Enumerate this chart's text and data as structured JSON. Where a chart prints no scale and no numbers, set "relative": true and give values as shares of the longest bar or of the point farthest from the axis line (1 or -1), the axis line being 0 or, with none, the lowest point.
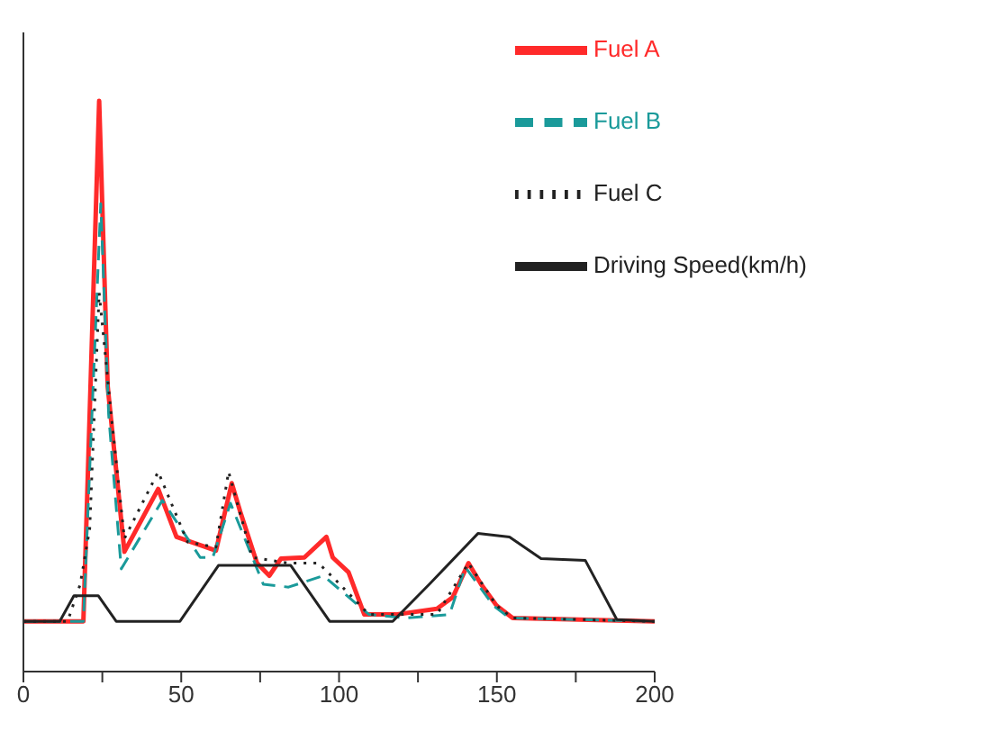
{
  "chart_data": {
    "type": "line",
    "relative": true,
    "xlim": [
      0,
      200
    ],
    "xticks": [
      0,
      {
        "value": 25,
        "label": null
      },
      50,
      {
        "value": 75,
        "label": null
      },
      100,
      {
        "value": 125,
        "label": null
      },
      150,
      {
        "value": 175,
        "label": null
      },
      200
    ],
    "legend": "top right",
    "grid": false,
    "marker": "none",
    "series": [
      {
        "name": "Fuel A",
        "color": "#ff2a2a",
        "line_style": "solid",
        "x": [
          0,
          19,
          24,
          26.7,
          32,
          42.7,
          48.5,
          61,
          66,
          68.7,
          74,
          77.9,
          81.6,
          89,
          96,
          98,
          103,
          108,
          118,
          131,
          136,
          141,
          145,
          150,
          155,
          200
        ],
        "values": [
          0.088,
          0.088,
          1.0,
          0.5,
          0.21,
          0.32,
          0.236,
          0.212,
          0.33,
          0.28,
          0.19,
          0.168,
          0.198,
          0.2,
          0.236,
          0.2,
          0.174,
          0.1,
          0.1,
          0.11,
          0.13,
          0.19,
          0.153,
          0.115,
          0.094,
          0.088
        ]
      },
      {
        "name": "Fuel B",
        "color": "#1a9a9a",
        "line_style": "dashed",
        "x": [
          0,
          19,
          24.5,
          27,
          31,
          44,
          56,
          60,
          65.6,
          76,
          84,
          95,
          101,
          109.5,
          121,
          135,
          140,
          149,
          154,
          200
        ],
        "values": [
          0.088,
          0.088,
          0.82,
          0.45,
          0.18,
          0.3,
          0.2,
          0.2,
          0.295,
          0.153,
          0.148,
          0.168,
          0.14,
          0.1,
          0.094,
          0.1,
          0.183,
          0.115,
          0.094,
          0.088
        ]
      },
      {
        "name": "Fuel C",
        "color": "#222222",
        "line_style": "dotted",
        "x": [
          0,
          14,
          18,
          21,
          24,
          28,
          32,
          42.7,
          52,
          61,
          65,
          72.5,
          84,
          93.5,
          99,
          109.5,
          131,
          141,
          150,
          155,
          200
        ],
        "values": [
          0.088,
          0.088,
          0.153,
          0.25,
          0.664,
          0.44,
          0.233,
          0.35,
          0.227,
          0.218,
          0.35,
          0.2,
          0.19,
          0.19,
          0.16,
          0.1,
          0.1,
          0.19,
          0.115,
          0.094,
          0.088
        ]
      },
      {
        "name": "Driving Speed(km/h)",
        "color": "#222222",
        "line_style": "solid",
        "x": [
          0,
          11.5,
          16,
          23.7,
          29.4,
          49.6,
          61.8,
          84.7,
          97,
          117,
          128.6,
          144,
          154,
          164,
          178,
          188,
          200
        ],
        "values": [
          0.088,
          0.088,
          0.133,
          0.133,
          0.088,
          0.088,
          0.186,
          0.186,
          0.088,
          0.088,
          0.153,
          0.242,
          0.236,
          0.198,
          0.195,
          0.091,
          0.088
        ]
      }
    ]
  }
}
